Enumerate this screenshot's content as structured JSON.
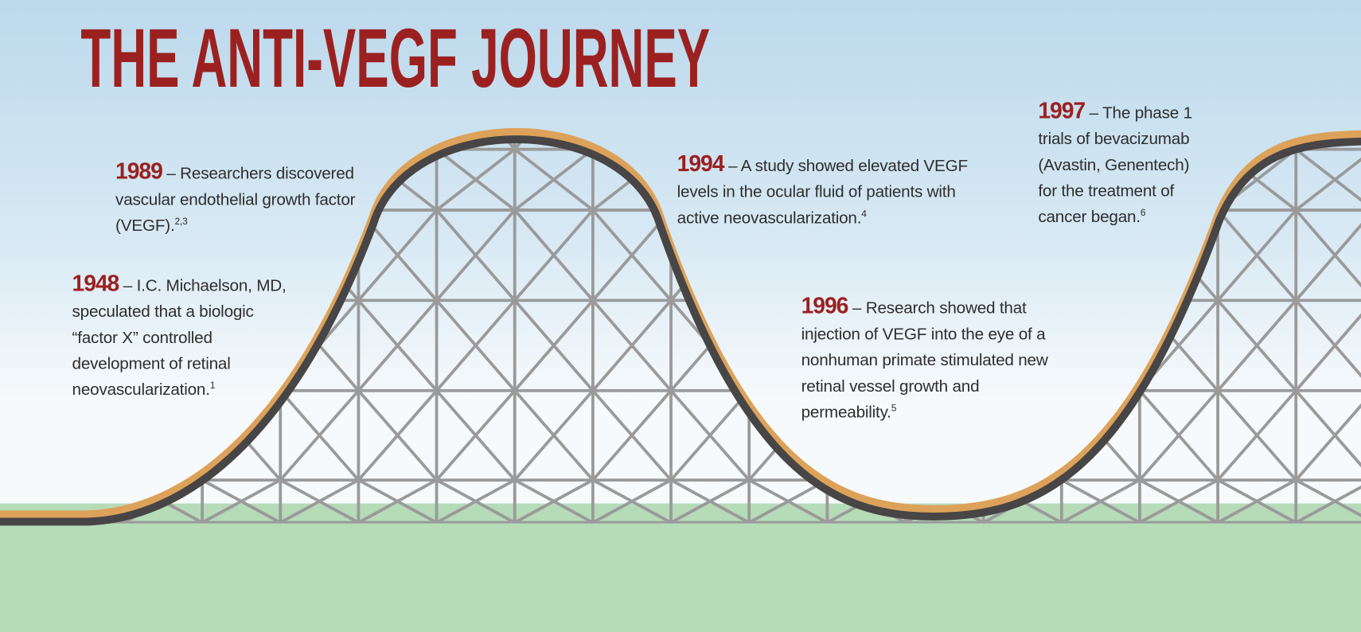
{
  "title": "THE ANTI-VEGF JOURNEY",
  "events": [
    {
      "year": "1989",
      "text": "– Researchers discovered vascular endothelial growth factor (VEGF).",
      "ref": "2,3"
    },
    {
      "year": "1948",
      "text": "– I.C. Michaelson, MD, speculated that a biologic “factor X” controlled development of retinal neovascularization.",
      "ref": "1"
    },
    {
      "year": "1994",
      "text": "– A study showed elevated VEGF levels in the ocular fluid of patients with active neovascularization.",
      "ref": "4"
    },
    {
      "year": "1996",
      "text": "– Research showed that injection of VEGF into the eye of a nonhuman primate stimulated new retinal vessel growth and permeability.",
      "ref": "5"
    },
    {
      "year": "1997",
      "text": "– The phase 1 trials of bevacizumab (Avastin, Genentech) for the treatment of cancer began.",
      "ref": "6"
    }
  ]
}
